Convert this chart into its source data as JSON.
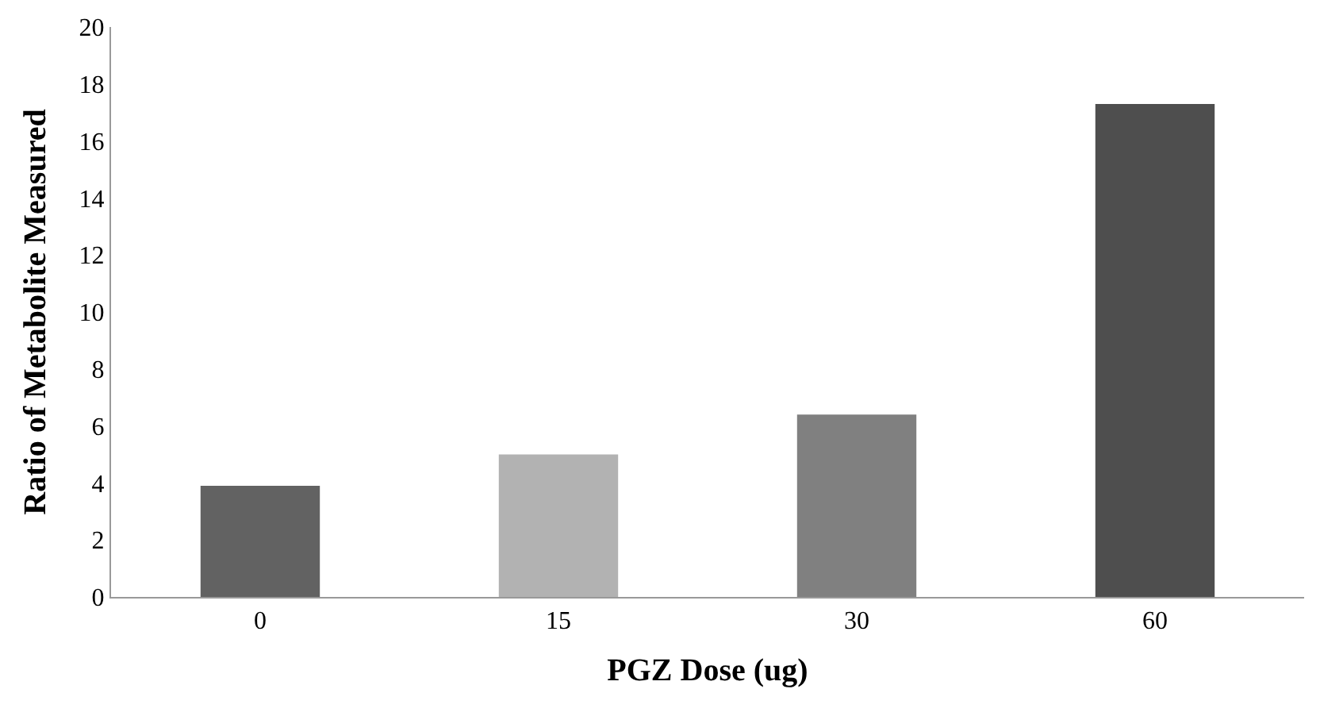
{
  "chart_data": {
    "type": "bar",
    "xlabel": "PGZ Dose (ug)",
    "ylabel": "Ratio of Metabolite Measured",
    "categories": [
      "0",
      "15",
      "30",
      "60"
    ],
    "values": [
      3.9,
      5.0,
      6.4,
      17.3
    ],
    "colors": [
      "#626262",
      "#b2b2b2",
      "#808080",
      "#4e4e4e"
    ],
    "ylim": [
      0,
      20
    ],
    "yticks": [
      0,
      2,
      4,
      6,
      8,
      10,
      12,
      14,
      16,
      18,
      20
    ]
  }
}
